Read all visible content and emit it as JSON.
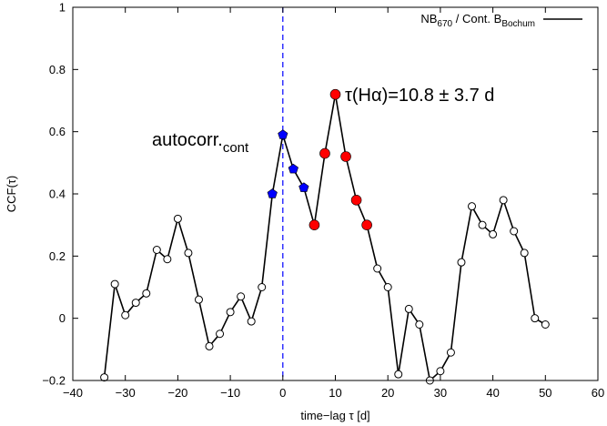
{
  "chart_data": {
    "type": "line",
    "xlabel": "time−lag τ [d]",
    "ylabel": "CCF(τ)",
    "xlim": [
      -40,
      60
    ],
    "ylim": [
      -0.2,
      1
    ],
    "xticks": [
      -40,
      -30,
      -20,
      -10,
      0,
      10,
      20,
      30,
      40,
      50,
      60
    ],
    "yticks": [
      -0.2,
      0,
      0.2,
      0.4,
      0.6,
      0.8,
      1
    ],
    "xtick_labels": [
      "−40",
      "−30",
      "−20",
      "−10",
      "0",
      "10",
      "20",
      "30",
      "40",
      "50",
      "60"
    ],
    "ytick_labels": [
      "−0.2",
      "0",
      "0.2",
      "0.4",
      "0.6",
      "0.8",
      "1"
    ],
    "grid": false,
    "legend": {
      "placement": "top-right",
      "label_main": "NB",
      "label_sub1": "670",
      "label_mid": " / Cont. B",
      "label_sub2": "Bochum"
    },
    "vline_x": 0,
    "series": [
      {
        "name": "NB670 / Cont. BBochum",
        "color": "#000000",
        "x": [
          -34,
          -32,
          -30,
          -28,
          -26,
          -24,
          -22,
          -20,
          -18,
          -16,
          -14,
          -12,
          -10,
          -8,
          -6,
          -4,
          -2,
          0,
          2,
          4,
          6,
          8,
          10,
          12,
          14,
          16,
          18,
          20,
          22,
          24,
          26,
          28,
          30,
          32,
          34,
          36,
          38,
          40,
          42,
          44,
          46,
          48,
          50
        ],
        "y": [
          -0.19,
          0.11,
          0.01,
          0.05,
          0.08,
          0.22,
          0.19,
          0.32,
          0.21,
          0.06,
          -0.09,
          -0.05,
          0.02,
          0.07,
          -0.01,
          0.1,
          0.4,
          0.59,
          0.48,
          0.42,
          0.3,
          0.53,
          0.72,
          0.52,
          0.38,
          0.3,
          0.16,
          0.1,
          -0.18,
          0.03,
          -0.02,
          -0.2,
          -0.17,
          -0.11,
          0.18,
          0.36,
          0.3,
          0.27,
          0.38,
          0.28,
          0.21,
          0.0,
          -0.02
        ]
      }
    ],
    "autocorr_points": {
      "color": "#0000ff",
      "x": [
        -2,
        0,
        2,
        4
      ]
    },
    "halpha_points": {
      "color": "#ff0000",
      "x": [
        6,
        8,
        10,
        12,
        14,
        16
      ]
    },
    "annotations": {
      "autocorr_main": "autocorr.",
      "autocorr_sub": "cont",
      "tau": "τ(Hα)=10.8 ± 3.7 d"
    }
  }
}
